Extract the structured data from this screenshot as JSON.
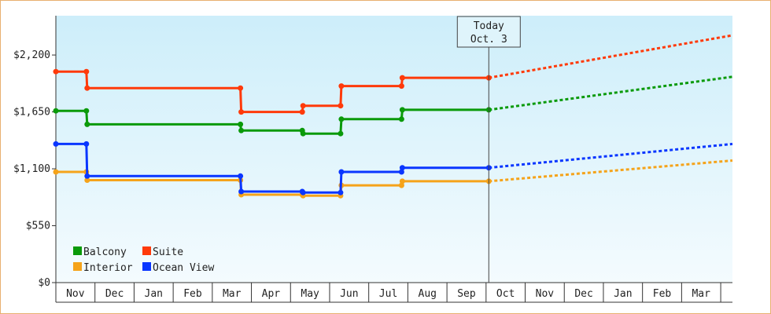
{
  "chart_data": {
    "type": "line",
    "y_ticks": [
      "$0",
      "$550",
      "$1,100",
      "$1,650",
      "$2,200"
    ],
    "y_tick_values": [
      0,
      550,
      1100,
      1650,
      2200
    ],
    "ylim": [
      0,
      2580
    ],
    "x_ticks": [
      "Nov",
      "Dec",
      "Jan",
      "Feb",
      "Mar",
      "Apr",
      "May",
      "Jun",
      "Jul",
      "Aug",
      "Sep",
      "Oct",
      "Nov",
      "Dec",
      "Jan",
      "Feb",
      "Mar"
    ],
    "xlim": [
      0,
      17.3
    ],
    "today": {
      "line1": "Today",
      "line2": "Oct. 3",
      "x": 11.07
    },
    "grid": "none",
    "background": "light blue gradient",
    "legend_position": "bottom-left",
    "series": [
      {
        "name": "Balcony",
        "color": "#0a9a0a",
        "points": [
          [
            0,
            1660
          ],
          [
            0.78,
            1660
          ],
          [
            0.8,
            1530
          ],
          [
            4.72,
            1530
          ],
          [
            4.74,
            1470
          ],
          [
            6.3,
            1470
          ],
          [
            6.32,
            1440
          ],
          [
            7.28,
            1440
          ],
          [
            7.3,
            1580
          ],
          [
            8.84,
            1580
          ],
          [
            8.86,
            1670
          ],
          [
            11.07,
            1670
          ]
        ],
        "projection": [
          [
            11.07,
            1670
          ],
          [
            17.3,
            1990
          ]
        ]
      },
      {
        "name": "Suite",
        "color": "#ff3a0a",
        "points": [
          [
            0,
            2040
          ],
          [
            0.78,
            2040
          ],
          [
            0.8,
            1880
          ],
          [
            4.72,
            1880
          ],
          [
            4.74,
            1650
          ],
          [
            6.3,
            1650
          ],
          [
            6.32,
            1710
          ],
          [
            7.28,
            1710
          ],
          [
            7.3,
            1900
          ],
          [
            8.84,
            1900
          ],
          [
            8.86,
            1980
          ],
          [
            11.07,
            1980
          ]
        ],
        "projection": [
          [
            11.07,
            1980
          ],
          [
            17.3,
            2390
          ]
        ]
      },
      {
        "name": "Interior",
        "color": "#f5a31a",
        "points": [
          [
            0,
            1070
          ],
          [
            0.78,
            1070
          ],
          [
            0.8,
            990
          ],
          [
            4.72,
            990
          ],
          [
            4.74,
            850
          ],
          [
            6.3,
            850
          ],
          [
            6.32,
            840
          ],
          [
            7.28,
            840
          ],
          [
            7.3,
            940
          ],
          [
            8.84,
            940
          ],
          [
            8.86,
            980
          ],
          [
            11.07,
            980
          ]
        ],
        "projection": [
          [
            11.07,
            980
          ],
          [
            17.3,
            1180
          ]
        ]
      },
      {
        "name": "Ocean View",
        "color": "#0a36ff",
        "points": [
          [
            0,
            1340
          ],
          [
            0.78,
            1340
          ],
          [
            0.8,
            1030
          ],
          [
            4.72,
            1030
          ],
          [
            4.74,
            880
          ],
          [
            6.3,
            880
          ],
          [
            6.32,
            870
          ],
          [
            7.28,
            870
          ],
          [
            7.3,
            1070
          ],
          [
            8.84,
            1070
          ],
          [
            8.86,
            1110
          ],
          [
            11.07,
            1110
          ]
        ],
        "projection": [
          [
            11.07,
            1110
          ],
          [
            17.3,
            1340
          ]
        ]
      }
    ],
    "legend": [
      {
        "label": "Balcony",
        "color": "#0a9a0a"
      },
      {
        "label": "Suite",
        "color": "#ff3a0a"
      },
      {
        "label": "Interior",
        "color": "#f5a31a"
      },
      {
        "label": "Ocean View",
        "color": "#0a36ff"
      }
    ]
  }
}
